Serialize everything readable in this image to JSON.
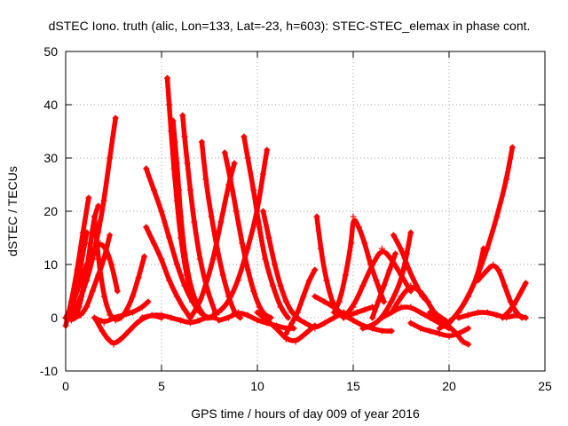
{
  "chart_data": {
    "type": "scatter",
    "title": "dSTEC Iono. truth (alic, Lon=133, Lat=-23, h=603): STEC-STEC_elemax in phase cont.",
    "xlabel": "GPS time / hours of day 009 of year 2016",
    "ylabel": "dSTEC  / TECUs",
    "xlim": [
      0,
      25
    ],
    "ylim": [
      -10,
      50
    ],
    "xticks": [
      0,
      5,
      10,
      15,
      20,
      25
    ],
    "yticks": [
      -10,
      0,
      10,
      20,
      30,
      40,
      50
    ],
    "grid": true,
    "legend": "none",
    "marker": "plus",
    "color": "#ff0000",
    "series": [
      {
        "x": [
          0,
          0.3,
          0.6,
          0.9,
          1.2
        ],
        "y": [
          -1.5,
          3,
          9,
          16,
          22.5
        ]
      },
      {
        "x": [
          0,
          0.3,
          0.5,
          0.7,
          0.9,
          1.1,
          1.3,
          1.5,
          1.7
        ],
        "y": [
          0,
          -0.5,
          0,
          2,
          5,
          9,
          14,
          19,
          21
        ]
      },
      {
        "x": [
          0,
          0.2,
          0.4,
          0.6,
          0.8,
          1.0,
          1.1
        ],
        "y": [
          0,
          1,
          3,
          6,
          10,
          14,
          16
        ]
      },
      {
        "x": [
          0.2,
          0.5,
          0.8,
          1.1,
          1.4,
          1.7,
          2.0,
          2.3,
          2.6
        ],
        "y": [
          0,
          1.5,
          4,
          7,
          11,
          16,
          22,
          30,
          37.5
        ]
      },
      {
        "x": [
          0.5,
          0.8,
          1.1,
          1.4,
          1.7,
          2.0,
          2.3
        ],
        "y": [
          0,
          0.5,
          2,
          5,
          8,
          11,
          15.5
        ]
      },
      {
        "x": [
          1.5,
          1.7,
          2.0,
          2.3,
          2.6,
          2.9,
          3.2,
          3.5,
          3.8,
          4.1
        ],
        "y": [
          19,
          11,
          4,
          0.5,
          -0.5,
          0,
          1.5,
          4,
          7.5,
          11.5
        ]
      },
      {
        "x": [
          1.5,
          2.0,
          2.5,
          3.0,
          3.5,
          4.0,
          4.3
        ],
        "y": [
          0,
          -1,
          0,
          0.5,
          1,
          2,
          3
        ]
      },
      {
        "x": [
          1.6,
          1.9,
          2.2,
          2.5,
          2.9,
          3.3,
          3.7,
          4.1,
          4.5,
          5.0
        ],
        "y": [
          -0.5,
          -2.5,
          -4,
          -5,
          -4,
          -2.5,
          -1,
          0,
          0.5,
          0
        ]
      },
      {
        "x": [
          0,
          0.3,
          0.6,
          0.9,
          1.2,
          1.5,
          1.8,
          2.1,
          2.4,
          2.7
        ],
        "y": [
          0,
          2,
          5,
          8,
          11,
          13,
          14,
          13,
          10,
          5
        ]
      },
      {
        "x": [
          4.2,
          4.6,
          5.0,
          5.4,
          5.8,
          6.2,
          6.6,
          7.0,
          7.4
        ],
        "y": [
          28,
          24,
          20,
          15,
          10,
          6,
          3,
          1,
          0
        ]
      },
      {
        "x": [
          4.2,
          4.6,
          5.0,
          5.4,
          5.8,
          6.2,
          6.5
        ],
        "y": [
          17,
          14,
          11,
          7,
          4,
          1.5,
          0
        ]
      },
      {
        "x": [
          4.0,
          4.5,
          5.0,
          5.5,
          6.0,
          6.5,
          7.0,
          7.3
        ],
        "y": [
          0,
          0.5,
          0.5,
          0,
          -0.5,
          -1,
          -0.5,
          0
        ]
      },
      {
        "x": [
          5.3,
          5.4,
          5.5,
          5.65,
          5.8,
          6.0,
          6.3,
          6.6,
          7.0,
          7.4,
          7.8
        ],
        "y": [
          45,
          40,
          35,
          28,
          22,
          15,
          8,
          4,
          1,
          0,
          0
        ]
      },
      {
        "x": [
          5.6,
          5.7,
          5.8,
          5.9,
          6.0,
          6.2,
          6.5,
          6.9,
          7.3
        ],
        "y": [
          37,
          33,
          29,
          24,
          19,
          12,
          6,
          2,
          0
        ]
      },
      {
        "x": [
          6.1,
          6.2,
          6.35,
          6.5,
          6.7,
          7.0,
          7.4,
          7.8
        ],
        "y": [
          38,
          34,
          29,
          24,
          18,
          11,
          5,
          1
        ]
      },
      {
        "x": [
          7.1,
          7.3,
          7.6,
          7.9,
          8.2,
          8.5,
          8.8,
          9.1
        ],
        "y": [
          33,
          26,
          19,
          13,
          8,
          4,
          1,
          0
        ]
      },
      {
        "x": [
          6.5,
          6.9,
          7.3,
          7.7,
          8.1,
          8.5,
          8.8
        ],
        "y": [
          0,
          2,
          6,
          11,
          18,
          25,
          29
        ]
      },
      {
        "x": [
          8.3,
          8.6,
          8.9,
          9.2,
          9.5,
          9.8,
          10.1,
          10.4,
          10.7
        ],
        "y": [
          31,
          26,
          20,
          14,
          9,
          5,
          2,
          0.5,
          0
        ]
      },
      {
        "x": [
          9.3,
          9.5,
          9.8,
          10.1,
          10.4,
          10.8,
          11.2,
          11.6
        ],
        "y": [
          34,
          30,
          24,
          17,
          11,
          6,
          2,
          0
        ]
      },
      {
        "x": [
          7.5,
          8.0,
          8.5,
          9.0,
          9.5,
          10.0,
          10.3,
          10.5
        ],
        "y": [
          0,
          1,
          3,
          7,
          13,
          20,
          27,
          31.5
        ]
      },
      {
        "x": [
          10.3,
          10.6,
          10.9,
          11.2,
          11.5,
          11.8,
          12.1
        ],
        "y": [
          20,
          15,
          10,
          6,
          3,
          1,
          0
        ]
      },
      {
        "x": [
          10.0,
          10.5,
          11.0,
          11.5,
          12.0,
          12.5,
          13.0
        ],
        "y": [
          1,
          -0.5,
          -2,
          -4,
          -4.5,
          -3,
          -1.5
        ]
      },
      {
        "x": [
          8.0,
          8.5,
          9.0,
          9.5,
          10.0,
          10.5,
          11.0,
          11.5,
          11.9
        ],
        "y": [
          -0.5,
          0,
          1,
          0.5,
          -0.5,
          -1,
          -1.5,
          -2,
          -2
        ]
      },
      {
        "x": [
          11.5,
          11.8,
          12.1,
          12.4,
          12.7,
          13.0
        ],
        "y": [
          -3,
          -1,
          1,
          4,
          7,
          9
        ]
      },
      {
        "x": [
          12.0,
          12.5,
          13.0,
          13.5,
          14.0,
          14.5
        ],
        "y": [
          0,
          -1,
          -2,
          -1,
          0,
          1
        ]
      },
      {
        "x": [
          13.1,
          13.3,
          13.6,
          13.9,
          14.2,
          14.5,
          14.8,
          15.2,
          15.6,
          16.0
        ],
        "y": [
          19,
          13,
          7,
          3,
          1,
          0,
          0.5,
          1,
          1.5,
          2
        ]
      },
      {
        "x": [
          13.0,
          13.5,
          14.0,
          14.5,
          15.0,
          15.5,
          16.0,
          16.5,
          17.0
        ],
        "y": [
          4,
          3,
          2,
          0.5,
          -0.5,
          -1.5,
          -2,
          -2.5,
          -2.5
        ]
      },
      {
        "x": [
          14.0,
          14.3,
          14.6,
          14.9,
          15.0,
          15.3,
          15.6,
          15.9,
          16.2,
          16.6
        ],
        "y": [
          1,
          3,
          8,
          14,
          19,
          17,
          14,
          10,
          7,
          3
        ]
      },
      {
        "x": [
          14.5,
          15.0,
          15.5,
          16.0,
          16.5,
          17.0,
          17.5,
          18.0
        ],
        "y": [
          0,
          2,
          6,
          10,
          13,
          11,
          8,
          5
        ]
      },
      {
        "x": [
          15.5,
          16.0,
          16.5,
          17.0,
          17.5,
          17.8,
          18.0
        ],
        "y": [
          -2,
          -1.5,
          0,
          3,
          7,
          12,
          16
        ]
      },
      {
        "x": [
          16.0,
          16.3,
          16.6,
          16.9,
          17.2
        ],
        "y": [
          0,
          3,
          6,
          9,
          12
        ]
      },
      {
        "x": [
          17.1,
          17.5,
          17.9,
          18.3,
          18.6,
          18.9
        ],
        "y": [
          15.5,
          13,
          9,
          6,
          4,
          3
        ]
      },
      {
        "x": [
          16.5,
          17.0,
          17.5,
          18.0,
          18.5,
          19.0,
          19.5,
          20.0
        ],
        "y": [
          0,
          1,
          2,
          2,
          1,
          0,
          -1,
          -2
        ]
      },
      {
        "x": [
          17.0,
          17.5,
          18.0,
          18.5,
          18.9,
          19.2,
          19.6,
          20.0
        ],
        "y": [
          1,
          4,
          6,
          5,
          3,
          1,
          0,
          -1
        ]
      },
      {
        "x": [
          18.0,
          18.5,
          19.0,
          19.5,
          20.0,
          20.5,
          21.0
        ],
        "y": [
          -1,
          -2,
          -2.5,
          -3,
          -3.5,
          -3,
          -2
        ]
      },
      {
        "x": [
          19.0,
          19.5,
          19.8,
          20.1,
          20.4,
          20.7,
          21.0
        ],
        "y": [
          1,
          0,
          -1,
          -2,
          -3,
          -4.5,
          -5
        ]
      },
      {
        "x": [
          19.5,
          20.0,
          20.5,
          21.0,
          21.5,
          21.8
        ],
        "y": [
          -2,
          -1,
          1,
          4,
          8,
          13
        ]
      },
      {
        "x": [
          20.0,
          20.5,
          21.0,
          21.5,
          22.0,
          22.5,
          23.0,
          23.3
        ],
        "y": [
          -1,
          1,
          4,
          8,
          13,
          19,
          26,
          32
        ]
      },
      {
        "x": [
          20.5,
          21.0,
          21.5,
          22.0,
          22.5,
          23.0,
          23.5,
          24.0
        ],
        "y": [
          0,
          0.5,
          1,
          1,
          0.5,
          0,
          0.5,
          0
        ]
      },
      {
        "x": [
          21.5,
          22.0,
          22.3,
          22.6,
          22.9,
          23.2,
          23.5,
          23.8
        ],
        "y": [
          7,
          9,
          10,
          9,
          6,
          3,
          1,
          0
        ]
      },
      {
        "x": [
          22.8,
          23.1,
          23.4,
          23.7,
          24.0
        ],
        "y": [
          0,
          1,
          2.5,
          4.5,
          6.5
        ]
      }
    ]
  }
}
